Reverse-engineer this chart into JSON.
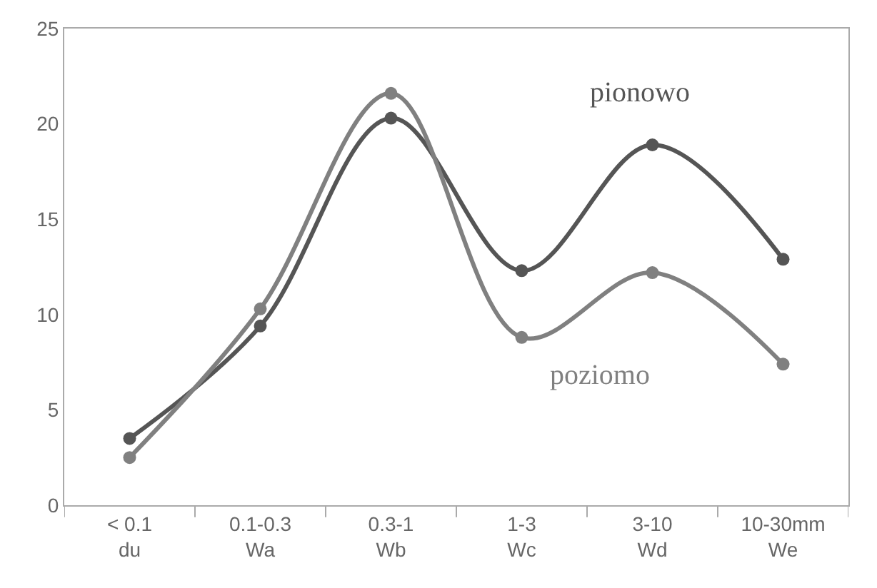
{
  "chart_data": {
    "type": "line",
    "categories": [
      "< 0.1\ndu",
      "0.1-0.3\nWa",
      "0.3-1\nWb",
      "1-3\nWc",
      "3-10\nWd",
      "10-30mm\nWe"
    ],
    "series": [
      {
        "name": "pionowo",
        "color": "#555555",
        "values": [
          3.5,
          9.4,
          20.3,
          12.3,
          18.9,
          12.9
        ]
      },
      {
        "name": "poziomo",
        "color": "#808080",
        "values": [
          2.5,
          10.3,
          21.6,
          8.8,
          12.2,
          7.4
        ]
      }
    ],
    "ylim": [
      0,
      25
    ],
    "yticks": [
      0,
      5,
      10,
      15,
      20,
      25
    ],
    "legend": false,
    "marker": "circle",
    "line_style": "solid"
  }
}
